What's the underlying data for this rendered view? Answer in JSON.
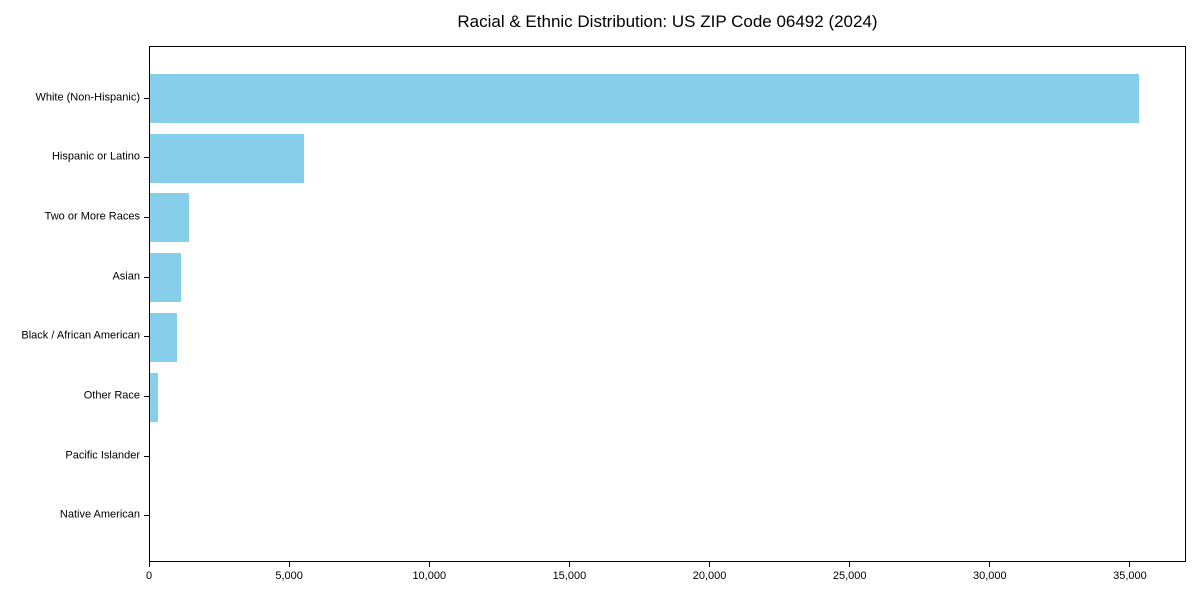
{
  "title": "Racial & Ethnic Distribution: US ZIP Code 06492 (2024)",
  "chart_data": {
    "type": "bar",
    "orientation": "horizontal",
    "title": "Racial & Ethnic Distribution: US ZIP Code 06492 (2024)",
    "xlabel": "",
    "ylabel": "",
    "categories": [
      "White (Non-Hispanic)",
      "Hispanic or Latino",
      "Two or More Races",
      "Asian",
      "Black / African American",
      "Other Race",
      "Pacific Islander",
      "Native American"
    ],
    "values": [
      35300,
      5500,
      1400,
      1100,
      950,
      300,
      0,
      0
    ],
    "xlim": [
      0,
      37000
    ],
    "xticks": [
      0,
      5000,
      10000,
      15000,
      20000,
      25000,
      30000,
      35000
    ],
    "xtick_labels": [
      "0",
      "5,000",
      "10,000",
      "15,000",
      "20,000",
      "25,000",
      "30,000",
      "35,000"
    ],
    "bar_color": "#87CEEB",
    "spine_color": "#000000",
    "grid": false,
    "legend": null
  }
}
